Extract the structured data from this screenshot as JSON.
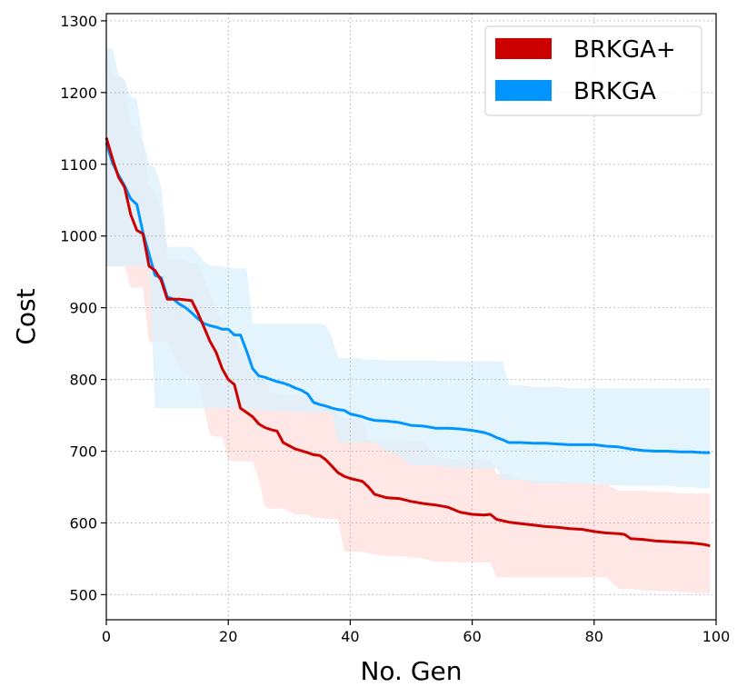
{
  "chart_data": {
    "type": "line",
    "title": "",
    "xlabel": "No. Gen",
    "ylabel": "Cost",
    "xlim": [
      0,
      100
    ],
    "ylim": [
      465,
      1310
    ],
    "xticks": [
      0,
      20,
      40,
      60,
      80,
      100
    ],
    "yticks": [
      500,
      600,
      700,
      800,
      900,
      1000,
      1100,
      1200,
      1300
    ],
    "grid": true,
    "legend_position": "top-right",
    "series": [
      {
        "name": "BRKGA+",
        "color": "#cc0000",
        "band_color": "#ffe3e1",
        "x": [
          0,
          1,
          2,
          3,
          4,
          5,
          6,
          7,
          8,
          9,
          10,
          12,
          14,
          15,
          16,
          17,
          18,
          19,
          20,
          21,
          22,
          24,
          25,
          26,
          27,
          28,
          29,
          31,
          33,
          34,
          35,
          36,
          38,
          39,
          40,
          42,
          43,
          44,
          46,
          48,
          50,
          52,
          54,
          56,
          58,
          60,
          62,
          63,
          64,
          66,
          68,
          70,
          72,
          74,
          76,
          78,
          80,
          82,
          84,
          85,
          86,
          88,
          90,
          92,
          94,
          96,
          98,
          99
        ],
        "mean": [
          1137,
          1108,
          1082,
          1068,
          1030,
          1008,
          1003,
          958,
          952,
          938,
          912,
          912,
          910,
          893,
          873,
          853,
          838,
          815,
          800,
          793,
          760,
          748,
          738,
          733,
          730,
          728,
          712,
          703,
          698,
          695,
          694,
          688,
          670,
          665,
          662,
          658,
          650,
          640,
          635,
          634,
          630,
          627,
          625,
          622,
          615,
          612,
          611,
          612,
          605,
          601,
          599,
          597,
          595,
          594,
          592,
          591,
          588,
          586,
          585,
          584,
          578,
          577,
          575,
          574,
          573,
          572,
          570,
          568
        ],
        "upper": [
          1270,
          1222,
          1220,
          1218,
          1155,
          1152,
          1125,
          1070,
          1060,
          1038,
          968,
          968,
          962,
          962,
          940,
          920,
          900,
          878,
          860,
          858,
          838,
          838,
          800,
          800,
          780,
          780,
          778,
          778,
          775,
          772,
          772,
          770,
          748,
          746,
          746,
          746,
          716,
          716,
          716,
          716,
          714,
          714,
          690,
          690,
          688,
          688,
          688,
          688,
          668,
          668,
          660,
          660,
          658,
          658,
          656,
          656,
          654,
          654,
          645,
          645,
          645,
          645,
          643,
          643,
          641,
          641,
          641,
          641
        ],
        "lower": [
          958,
          958,
          958,
          958,
          928,
          928,
          928,
          852,
          852,
          852,
          852,
          818,
          802,
          800,
          760,
          722,
          720,
          720,
          688,
          686,
          686,
          686,
          660,
          622,
          620,
          620,
          620,
          612,
          612,
          607,
          607,
          606,
          605,
          560,
          560,
          560,
          558,
          556,
          554,
          554,
          552,
          550,
          546,
          546,
          545,
          545,
          545,
          545,
          524,
          524,
          524,
          524,
          524,
          524,
          524,
          524,
          524,
          524,
          508,
          508,
          508,
          506,
          505,
          505,
          504,
          503,
          502,
          502
        ]
      },
      {
        "name": "BRKGA",
        "color": "#0095ff",
        "band_color": "#d9f0fb",
        "x": [
          0,
          1,
          2,
          3,
          4,
          5,
          6,
          7,
          8,
          9,
          10,
          11,
          12,
          13,
          14,
          15,
          16,
          17,
          18,
          19,
          20,
          21,
          22,
          23,
          24,
          25,
          26,
          27,
          28,
          29,
          30,
          31,
          32,
          33,
          34,
          35,
          36,
          37,
          38,
          39,
          40,
          41,
          42,
          43,
          44,
          46,
          48,
          50,
          52,
          54,
          56,
          58,
          60,
          62,
          63,
          64,
          65,
          66,
          68,
          70,
          72,
          74,
          76,
          78,
          80,
          82,
          84,
          86,
          88,
          90,
          92,
          94,
          96,
          98,
          99
        ],
        "mean": [
          1130,
          1102,
          1085,
          1070,
          1052,
          1044,
          1005,
          975,
          945,
          942,
          915,
          912,
          905,
          900,
          893,
          885,
          878,
          875,
          873,
          870,
          870,
          862,
          862,
          840,
          815,
          805,
          803,
          800,
          797,
          795,
          792,
          788,
          785,
          780,
          768,
          765,
          763,
          760,
          758,
          757,
          752,
          750,
          748,
          745,
          743,
          742,
          740,
          736,
          735,
          732,
          732,
          731,
          729,
          726,
          723,
          719,
          716,
          712,
          712,
          711,
          711,
          710,
          709,
          709,
          709,
          707,
          706,
          703,
          701,
          700,
          700,
          699,
          699,
          698,
          698
        ],
        "upper": [
          1262,
          1262,
          1225,
          1218,
          1195,
          1190,
          1135,
          1100,
          1095,
          1068,
          985,
          985,
          985,
          985,
          985,
          975,
          965,
          958,
          958,
          958,
          955,
          955,
          955,
          955,
          878,
          878,
          878,
          878,
          878,
          878,
          878,
          878,
          878,
          878,
          878,
          878,
          876,
          858,
          830,
          830,
          830,
          830,
          828,
          828,
          828,
          826,
          826,
          826,
          826,
          826,
          825,
          825,
          825,
          825,
          825,
          825,
          825,
          792,
          792,
          790,
          790,
          790,
          788,
          788,
          788,
          788,
          788,
          788,
          788,
          788,
          788,
          788,
          788,
          788,
          788
        ],
        "lower": [
          958,
          958,
          958,
          958,
          958,
          958,
          958,
          958,
          760,
          760,
          760,
          760,
          760,
          760,
          760,
          760,
          760,
          760,
          760,
          760,
          760,
          760,
          760,
          760,
          758,
          758,
          756,
          756,
          756,
          756,
          755,
          755,
          755,
          754,
          754,
          754,
          754,
          752,
          712,
          712,
          712,
          712,
          712,
          712,
          712,
          700,
          694,
          680,
          680,
          680,
          678,
          676,
          676,
          676,
          676,
          676,
          660,
          660,
          660,
          655,
          655,
          655,
          655,
          655,
          655,
          653,
          652,
          652,
          652,
          652,
          652,
          650,
          650,
          648,
          648
        ]
      }
    ]
  }
}
